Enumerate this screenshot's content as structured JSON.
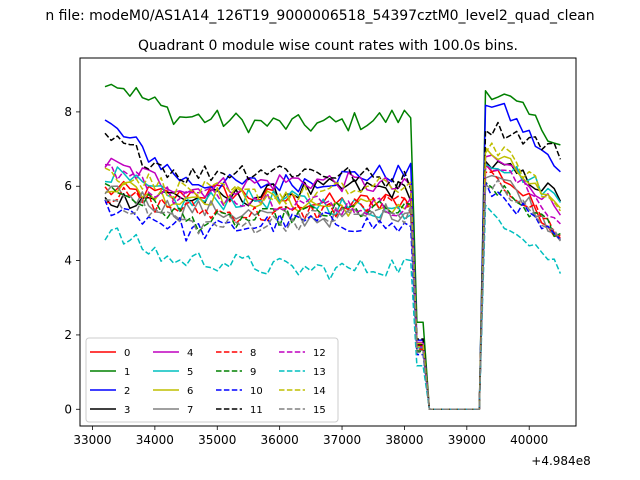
{
  "chart_data": {
    "type": "line",
    "suptitle": "n file: modeM0/AS1A14_126T19_9000006518_54397cztM0_level2_quad_clean",
    "title": "Quadrant 0 module wise count rates with 100.0s bins.",
    "xlabel": "",
    "ylabel": "",
    "x_offset_label": "+4.984e8",
    "xlim": [
      32800,
      40750
    ],
    "ylim": [
      -0.45,
      9.45
    ],
    "xticks": [
      33000,
      34000,
      35000,
      36000,
      37000,
      38000,
      39000,
      40000
    ],
    "yticks": [
      0,
      2,
      4,
      6,
      8
    ],
    "x_start": 33200,
    "x_step": 100,
    "n_points": 74,
    "gap": {
      "drop_start": 38150,
      "zero_from": 38350,
      "zero_to": 39150,
      "rise_end": 39300
    },
    "series": [
      {
        "name": "0",
        "color": "#ff0000",
        "dash": "solid",
        "level": 5.7,
        "start": 5.9,
        "end": 4.6,
        "post": 6.5
      },
      {
        "name": "1",
        "color": "#008000",
        "dash": "solid",
        "level": 7.8,
        "start": 8.95,
        "end": 7.1,
        "post": 8.6
      },
      {
        "name": "2",
        "color": "#0000ff",
        "dash": "solid",
        "level": 6.2,
        "start": 7.7,
        "end": 6.3,
        "post": 8.3
      },
      {
        "name": "3",
        "color": "#000000",
        "dash": "solid",
        "level": 5.8,
        "start": 5.6,
        "end": 5.7,
        "post": 6.6
      },
      {
        "name": "4",
        "color": "#bf00bf",
        "dash": "solid",
        "level": 6.0,
        "start": 6.6,
        "end": 5.3,
        "post": 6.8
      },
      {
        "name": "5",
        "color": "#00bfbf",
        "dash": "solid",
        "level": 5.5,
        "start": 6.4,
        "end": 5.6,
        "post": 6.7
      },
      {
        "name": "6",
        "color": "#bfbf00",
        "dash": "solid",
        "level": 5.6,
        "start": 6.1,
        "end": 5.2,
        "post": 6.9
      },
      {
        "name": "7",
        "color": "#808080",
        "dash": "solid",
        "level": 5.3,
        "start": 6.0,
        "end": 4.6,
        "post": 6.4
      },
      {
        "name": "8",
        "color": "#ff0000",
        "dash": "dashed",
        "level": 5.4,
        "start": 5.8,
        "end": 4.7,
        "post": 6.2
      },
      {
        "name": "9",
        "color": "#008000",
        "dash": "dashed",
        "level": 5.2,
        "start": 6.0,
        "end": 4.6,
        "post": 6.0
      },
      {
        "name": "10",
        "color": "#0000ff",
        "dash": "dashed",
        "level": 4.9,
        "start": 5.5,
        "end": 4.4,
        "post": 5.9
      },
      {
        "name": "11",
        "color": "#000000",
        "dash": "dashed",
        "level": 6.3,
        "start": 7.3,
        "end": 6.9,
        "post": 7.6
      },
      {
        "name": "12",
        "color": "#bf00bf",
        "dash": "dashed",
        "level": 5.6,
        "start": 6.6,
        "end": 5.0,
        "post": 6.6
      },
      {
        "name": "13",
        "color": "#00bfbf",
        "dash": "dashed",
        "level": 3.9,
        "start": 4.8,
        "end": 3.75,
        "post": 5.3
      },
      {
        "name": "14",
        "color": "#bfbf00",
        "dash": "dashed",
        "level": 5.9,
        "start": 6.4,
        "end": 5.3,
        "post": 7.1
      },
      {
        "name": "15",
        "color": "#808080",
        "dash": "dashed",
        "level": 5.1,
        "start": 5.7,
        "end": 4.5,
        "post": 6.1
      }
    ],
    "legend": {
      "placement": "lower-left",
      "ncol": 4
    }
  }
}
